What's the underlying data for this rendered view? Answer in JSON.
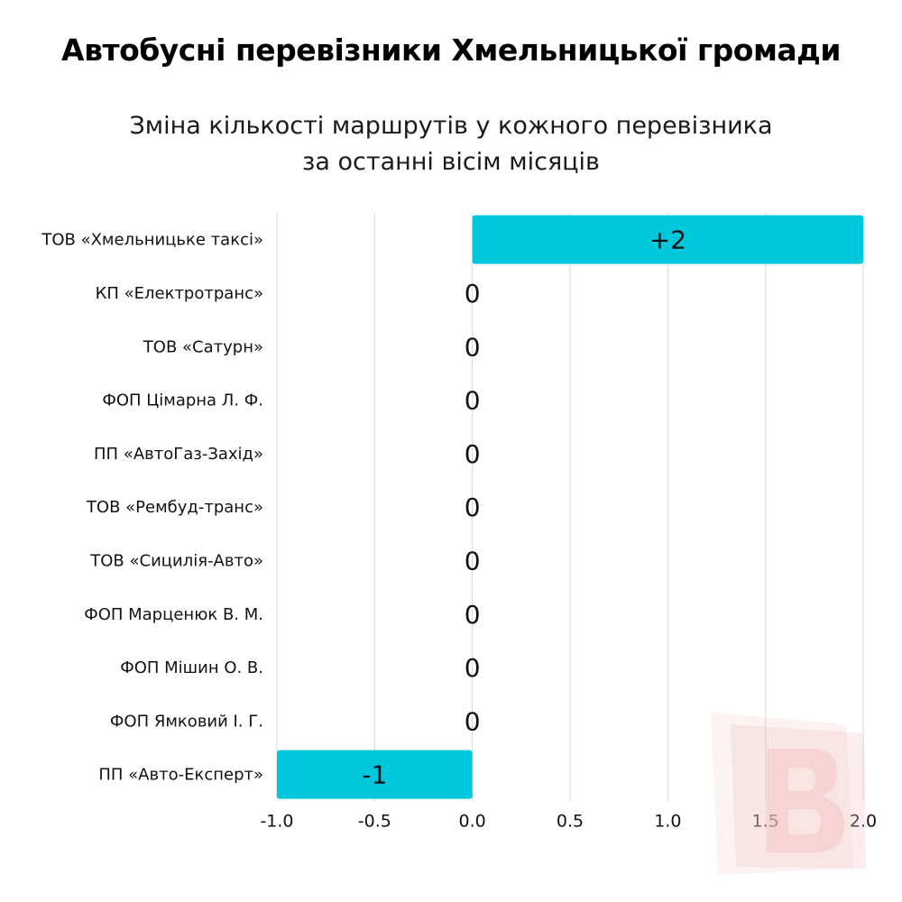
{
  "header": {
    "title": "Автобусні перевізники Хмельницької громади",
    "subtitle_lines": [
      "Зміна кількості маршрутів у кожного перевізника",
      "за останні вісім місяців"
    ]
  },
  "chart_data": {
    "type": "bar",
    "orientation": "horizontal",
    "title": "Автобусні перевізники Хмельницької громади",
    "subtitle": "Зміна кількості маршрутів у кожного перевізника за останні вісім місяців",
    "categories": [
      "ТОВ «Хмельницьке таксі»",
      "КП «Електротранс»",
      "ТОВ «Сатурн»",
      "ФОП Цімарна Л. Ф.",
      "ПП «АвтоГаз-Захід»",
      "ТОВ «Рембуд-транс»",
      "ТОВ «Сицилія-Авто»",
      "ФОП Марценюк В. М.",
      "ФОП Мішин О. В.",
      "ФОП Ямковий І. Г.",
      "ПП «Авто-Експерт»"
    ],
    "values": [
      2,
      0,
      0,
      0,
      0,
      0,
      0,
      0,
      0,
      0,
      -1
    ],
    "data_labels": [
      "+2",
      "0",
      "0",
      "0",
      "0",
      "0",
      "0",
      "0",
      "0",
      "0",
      "-1"
    ],
    "xlim": [
      -1.0,
      2.0
    ],
    "xticks": [
      -1.0,
      -0.5,
      0.0,
      0.5,
      1.0,
      1.5,
      2.0
    ],
    "xtick_labels": [
      "-1.0",
      "-0.5",
      "0.0",
      "0.5",
      "1.0",
      "1.5",
      "2.0"
    ],
    "xlabel": "",
    "ylabel": "",
    "grid": "vertical",
    "legend": "none",
    "bar_color": "#00c8dc",
    "grid_color": "#d9d9d9",
    "watermark_color": "#f3c2c2"
  }
}
